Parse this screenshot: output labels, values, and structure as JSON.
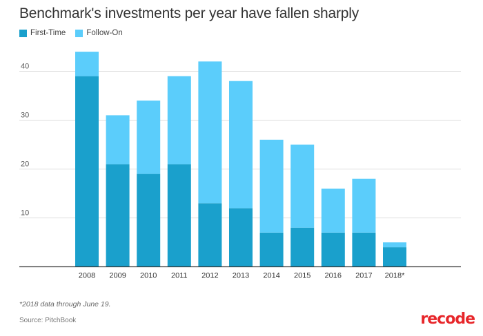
{
  "colors": {
    "first_time": "#1aa0cc",
    "follow_on": "#5bcdfb",
    "grid": "#dcdcdc",
    "axis": "#333333",
    "brand": "#e7262a"
  },
  "footnote": "*2018 data through June 19.",
  "source": "Source: PitchBook",
  "logo": "recode",
  "chart_data": {
    "type": "bar",
    "stacked": true,
    "title": "Benchmark's investments per year have fallen sharply",
    "categories": [
      "2008",
      "2009",
      "2010",
      "2011",
      "2012",
      "2013",
      "2014",
      "2015",
      "2016",
      "2017",
      "2018*"
    ],
    "series": [
      {
        "name": "First-Time",
        "values": [
          39,
          21,
          19,
          21,
          13,
          12,
          7,
          8,
          7,
          7,
          4
        ]
      },
      {
        "name": "Follow-On",
        "values": [
          5,
          10,
          15,
          18,
          29,
          26,
          19,
          17,
          9,
          11,
          1
        ]
      }
    ],
    "yticks": [
      10,
      20,
      30,
      40
    ],
    "ylim": [
      0,
      45
    ],
    "xlabel": "",
    "ylabel": "",
    "grid": true,
    "legend_position": "top-left"
  }
}
